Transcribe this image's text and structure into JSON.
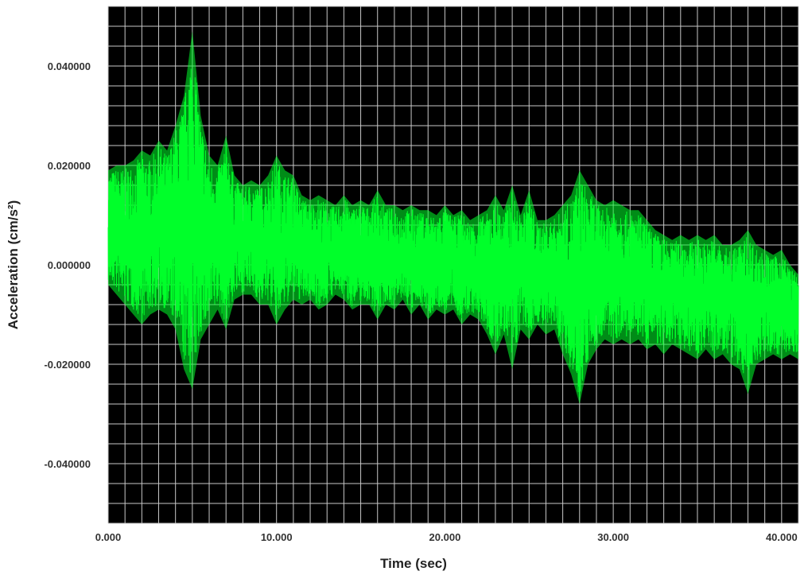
{
  "chart_data": {
    "type": "line",
    "xlabel": "Time (sec)",
    "ylabel": "Acceleration (cm/s²)",
    "xlim": [
      0,
      41
    ],
    "ylim": [
      -0.052,
      0.052
    ],
    "x_ticks": [
      {
        "value": 0,
        "label": "0.000"
      },
      {
        "value": 10,
        "label": "10.000"
      },
      {
        "value": 20,
        "label": "20.000"
      },
      {
        "value": 30,
        "label": "30.000"
      },
      {
        "value": 40,
        "label": "40.000"
      }
    ],
    "y_ticks": [
      {
        "value": 0.04,
        "label": "0.040000"
      },
      {
        "value": 0.02,
        "label": "0.020000"
      },
      {
        "value": 0,
        "label": "0.000000"
      },
      {
        "value": -0.02,
        "label": "-0.020000"
      },
      {
        "value": -0.04,
        "label": "-0.040000"
      }
    ],
    "grid": true,
    "x_grid_step": 1,
    "y_grid_step": 0.004,
    "background": "#000000",
    "grid_color": "#c8c8c8",
    "series": [
      {
        "color": "#00ff2a",
        "x": [
          0,
          0.5,
          1,
          1.5,
          2,
          2.5,
          3,
          3.5,
          4,
          4.5,
          5,
          5.5,
          6,
          6.5,
          7,
          7.5,
          8,
          8.5,
          9,
          9.5,
          10,
          10.5,
          11,
          11.5,
          12,
          12.5,
          13,
          13.5,
          14,
          14.5,
          15,
          15.5,
          16,
          16.5,
          17,
          17.5,
          18,
          18.5,
          19,
          19.5,
          20,
          20.5,
          21,
          21.5,
          22,
          22.5,
          23,
          23.5,
          24,
          24.5,
          25,
          25.5,
          26,
          26.5,
          27,
          27.5,
          28,
          28.5,
          29,
          29.5,
          30,
          30.5,
          31,
          31.5,
          32,
          32.5,
          33,
          33.5,
          34,
          34.5,
          35,
          35.5,
          36,
          36.5,
          37,
          37.5,
          38,
          38.5,
          39,
          39.5,
          40,
          40.5,
          41
        ],
        "upper": [
          0.019,
          0.02,
          0.02,
          0.021,
          0.023,
          0.022,
          0.025,
          0.023,
          0.028,
          0.034,
          0.047,
          0.03,
          0.022,
          0.02,
          0.026,
          0.018,
          0.016,
          0.017,
          0.016,
          0.018,
          0.022,
          0.019,
          0.018,
          0.014,
          0.013,
          0.014,
          0.013,
          0.012,
          0.014,
          0.012,
          0.013,
          0.012,
          0.015,
          0.012,
          0.012,
          0.011,
          0.012,
          0.011,
          0.011,
          0.01,
          0.012,
          0.01,
          0.011,
          0.009,
          0.01,
          0.011,
          0.014,
          0.011,
          0.016,
          0.01,
          0.015,
          0.009,
          0.009,
          0.01,
          0.012,
          0.014,
          0.019,
          0.016,
          0.013,
          0.012,
          0.013,
          0.012,
          0.011,
          0.011,
          0.009,
          0.007,
          0.006,
          0.005,
          0.006,
          0.005,
          0.006,
          0.005,
          0.006,
          0.004,
          0.004,
          0.005,
          0.007,
          0.004,
          0.003,
          0.002,
          0.003,
          0.0,
          -0.002
        ],
        "lower": [
          -0.004,
          -0.006,
          -0.008,
          -0.01,
          -0.012,
          -0.01,
          -0.009,
          -0.01,
          -0.013,
          -0.021,
          -0.025,
          -0.015,
          -0.012,
          -0.009,
          -0.013,
          -0.007,
          -0.006,
          -0.006,
          -0.008,
          -0.008,
          -0.012,
          -0.009,
          -0.007,
          -0.008,
          -0.007,
          -0.009,
          -0.008,
          -0.006,
          -0.007,
          -0.009,
          -0.008,
          -0.008,
          -0.011,
          -0.008,
          -0.009,
          -0.007,
          -0.01,
          -0.008,
          -0.011,
          -0.009,
          -0.01,
          -0.009,
          -0.012,
          -0.01,
          -0.011,
          -0.014,
          -0.018,
          -0.014,
          -0.021,
          -0.013,
          -0.015,
          -0.012,
          -0.014,
          -0.013,
          -0.018,
          -0.022,
          -0.028,
          -0.02,
          -0.017,
          -0.015,
          -0.016,
          -0.015,
          -0.016,
          -0.015,
          -0.017,
          -0.016,
          -0.018,
          -0.016,
          -0.017,
          -0.018,
          -0.019,
          -0.017,
          -0.019,
          -0.018,
          -0.02,
          -0.021,
          -0.026,
          -0.02,
          -0.019,
          -0.018,
          -0.019,
          -0.018,
          -0.019
        ]
      }
    ]
  }
}
